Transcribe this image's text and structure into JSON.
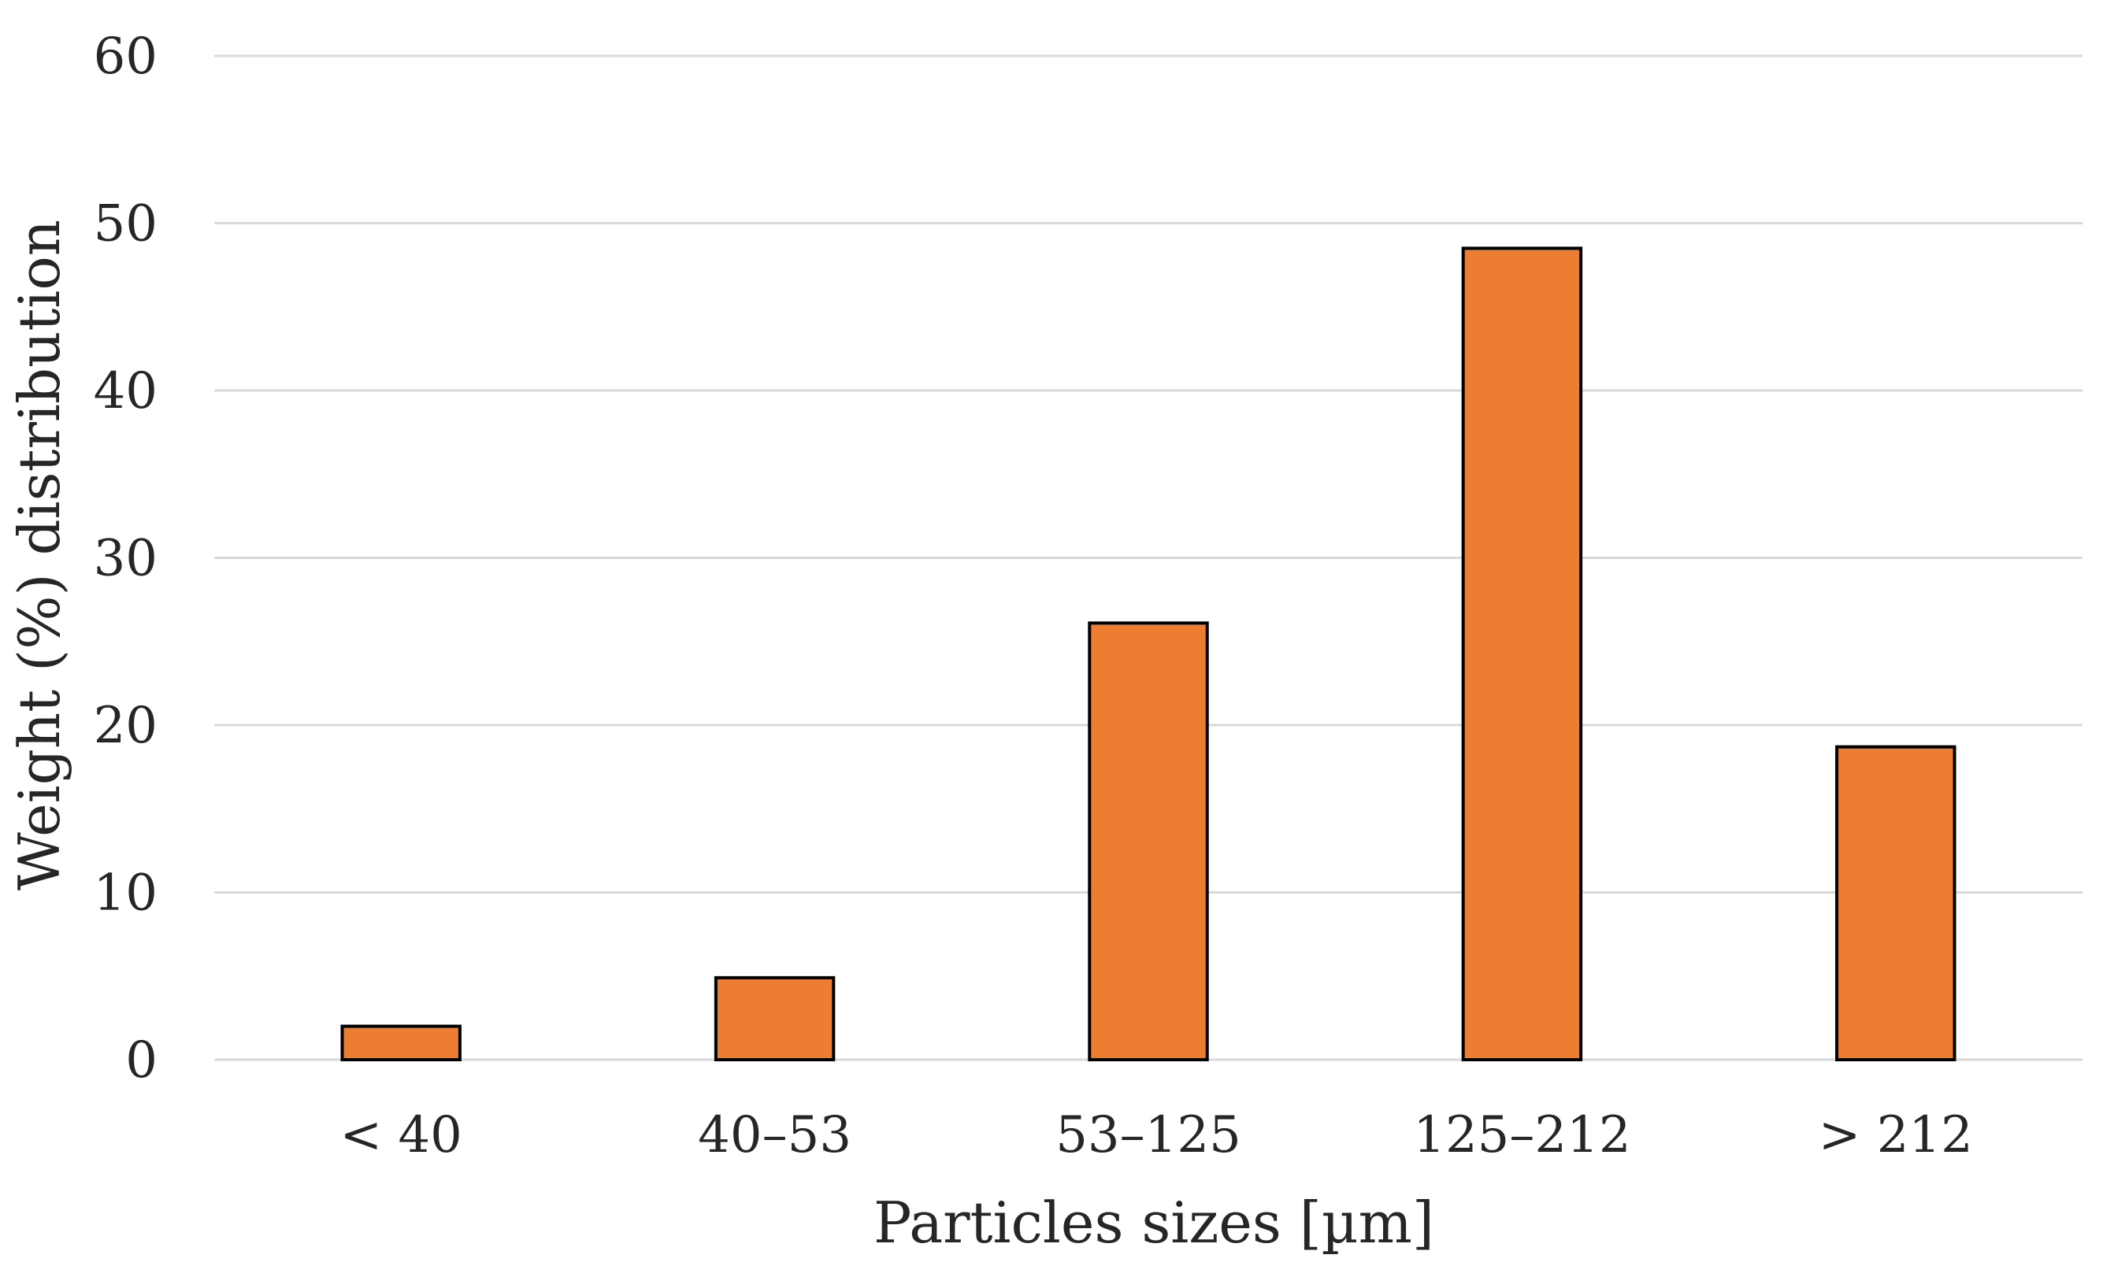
{
  "chart_data": {
    "type": "bar",
    "categories": [
      "< 40",
      "40–53",
      "53–125",
      "125–212",
      "> 212"
    ],
    "values": [
      2.0,
      4.9,
      26.1,
      48.5,
      18.7
    ],
    "xlabel": "Particles sizes [µm]",
    "ylabel": "Weight (%) distribution",
    "ylim": [
      0,
      60
    ],
    "yticks": [
      0,
      10,
      20,
      30,
      40,
      50,
      60
    ],
    "grid": true,
    "legend": "none",
    "bar_color": "#ED7D31",
    "bar_outline_color": "#000000",
    "grid_color": "#D9D9D9"
  }
}
